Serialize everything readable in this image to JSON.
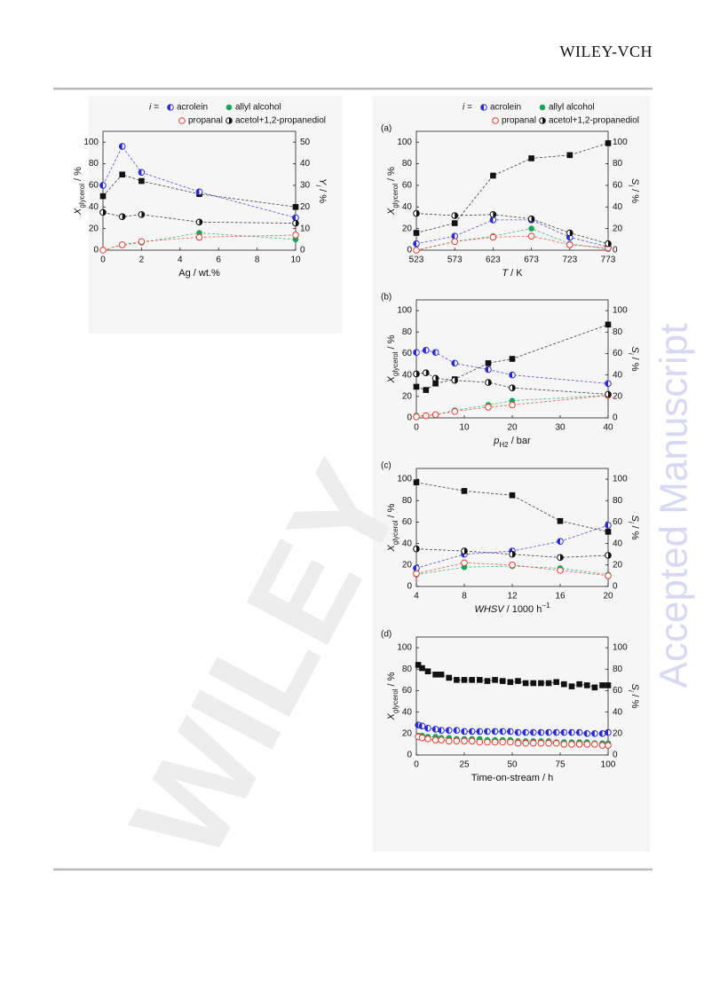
{
  "header": "WILEY-VCH",
  "watermark": "Accepted Manuscript",
  "watermark_diagonal": "WILEY",
  "chart_data": [
    {
      "type": "scatter",
      "legend": true,
      "legend_prefix": "i =",
      "xlabel": [
        "Ag / wt.%"
      ],
      "ylabel": [
        "X",
        "glycerol",
        " / %"
      ],
      "y2label": [
        "Y",
        "i",
        " / %"
      ],
      "x": [
        0,
        1,
        2,
        5,
        10
      ],
      "xlim": [
        0,
        10
      ],
      "xticks": [
        0,
        2,
        4,
        6,
        8,
        10
      ],
      "ylim": [
        0,
        110
      ],
      "yticks": [
        0,
        20,
        40,
        60,
        80,
        100
      ],
      "y2lim": [
        0,
        55
      ],
      "y2ticks": [
        0,
        10,
        20,
        30,
        40,
        50
      ],
      "series": [
        {
          "color": "#111111",
          "marker": "square",
          "axis": "y",
          "values": [
            50,
            70,
            64,
            52,
            40
          ]
        },
        {
          "name": "acrolein",
          "color": "#2b2bd6",
          "marker": "half-left",
          "axis": "y2",
          "values": [
            30,
            48,
            36,
            27,
            15
          ]
        },
        {
          "name": "allyl alcohol",
          "color": "#1aa65a",
          "marker": "filled",
          "axis": "y2",
          "values": [
            0,
            2.5,
            3.5,
            8,
            5
          ]
        },
        {
          "name": "propanal",
          "color": "#e83a2e",
          "marker": "open",
          "axis": "y2",
          "values": [
            0,
            2.5,
            4,
            6,
            7
          ]
        },
        {
          "name": "acetol+1,2-propanediol",
          "color": "#111111",
          "marker": "half-right",
          "axis": "y2",
          "values": [
            17.5,
            15.5,
            16.5,
            13,
            12.5
          ]
        }
      ]
    },
    {
      "type": "scatter",
      "legend": true,
      "legend_prefix": "i =",
      "panel": "(a)",
      "xlabel": [
        "T",
        " / K"
      ],
      "ylabel": [
        "X",
        "glycerol",
        " / %"
      ],
      "y2label": [
        "S",
        "i",
        " / %"
      ],
      "x": [
        523,
        573,
        623,
        673,
        723,
        773
      ],
      "xlim": [
        523,
        773
      ],
      "xticks": [
        523,
        573,
        623,
        673,
        723,
        773
      ],
      "ylim": [
        0,
        110
      ],
      "yticks": [
        0,
        20,
        40,
        60,
        80,
        100
      ],
      "y2lim": [
        0,
        110
      ],
      "y2ticks": [
        0,
        20,
        40,
        60,
        80,
        100
      ],
      "series": [
        {
          "color": "#111111",
          "marker": "square",
          "axis": "y",
          "values": [
            16,
            25,
            69,
            85,
            88,
            99
          ]
        },
        {
          "name": "acrolein",
          "color": "#2b2bd6",
          "marker": "half-left",
          "axis": "y2",
          "values": [
            6,
            13,
            28,
            28,
            12,
            3
          ]
        },
        {
          "name": "allyl alcohol",
          "color": "#1aa65a",
          "marker": "filled",
          "axis": "y2",
          "values": [
            0,
            8,
            13,
            20,
            6,
            1
          ]
        },
        {
          "name": "propanal",
          "color": "#e83a2e",
          "marker": "open",
          "axis": "y2",
          "values": [
            0,
            8,
            12,
            13,
            5,
            2
          ]
        },
        {
          "name": "acetol+1,2-propanediol",
          "color": "#111111",
          "marker": "half-right",
          "axis": "y2",
          "values": [
            34,
            32,
            33,
            29,
            16,
            6
          ]
        }
      ]
    },
    {
      "type": "scatter",
      "legend": false,
      "panel": "(b)",
      "xlabel": [
        "p",
        "H2",
        " / bar"
      ],
      "ylabel": [
        "X",
        "glycerol",
        " / %"
      ],
      "y2label": [
        "S",
        "i",
        " / %"
      ],
      "x": [
        0,
        2,
        4,
        8,
        15,
        20,
        40
      ],
      "xlim": [
        0,
        40
      ],
      "xticks": [
        0,
        10,
        20,
        30,
        40
      ],
      "ylim": [
        0,
        110
      ],
      "yticks": [
        0,
        20,
        40,
        60,
        80,
        100
      ],
      "y2lim": [
        0,
        110
      ],
      "y2ticks": [
        0,
        20,
        40,
        60,
        80,
        100
      ],
      "series": [
        {
          "color": "#111111",
          "marker": "square",
          "axis": "y",
          "values": [
            29,
            26,
            32,
            36,
            51,
            55,
            87
          ]
        },
        {
          "name": "acrolein",
          "color": "#2b2bd6",
          "marker": "half-left",
          "axis": "y2",
          "values": [
            61,
            63,
            61,
            51,
            45,
            40,
            32
          ]
        },
        {
          "name": "allyl alcohol",
          "color": "#1aa65a",
          "marker": "filled",
          "axis": "y2",
          "values": [
            2,
            2,
            3,
            7,
            12,
            16,
            21
          ]
        },
        {
          "name": "propanal",
          "color": "#e83a2e",
          "marker": "open",
          "axis": "y2",
          "values": [
            1,
            2,
            3,
            6,
            10,
            12,
            21
          ]
        },
        {
          "name": "acetol+1,2-propanediol",
          "color": "#111111",
          "marker": "half-right",
          "axis": "y2",
          "values": [
            41,
            42,
            37,
            35,
            33,
            28,
            22
          ]
        }
      ]
    },
    {
      "type": "scatter",
      "legend": false,
      "panel": "(c)",
      "xlabel": [
        "WHSV",
        " / 1000 h",
        "−1"
      ],
      "ylabel": [
        "X",
        "glycerol",
        " / %"
      ],
      "y2label": [
        "S",
        "i",
        " / %"
      ],
      "x": [
        4,
        8,
        12,
        16,
        20
      ],
      "xlim": [
        4,
        20
      ],
      "xticks": [
        4,
        8,
        12,
        16,
        20
      ],
      "ylim": [
        0,
        110
      ],
      "yticks": [
        0,
        20,
        40,
        60,
        80,
        100
      ],
      "y2lim": [
        0,
        110
      ],
      "y2ticks": [
        0,
        20,
        40,
        60,
        80,
        100
      ],
      "series": [
        {
          "color": "#111111",
          "marker": "square",
          "axis": "y",
          "values": [
            97,
            89,
            85,
            61,
            51
          ]
        },
        {
          "name": "acrolein",
          "color": "#2b2bd6",
          "marker": "half-left",
          "axis": "y2",
          "values": [
            17,
            30,
            33,
            42,
            57
          ]
        },
        {
          "name": "allyl alcohol",
          "color": "#1aa65a",
          "marker": "filled",
          "axis": "y2",
          "values": [
            11,
            18,
            19,
            17,
            11
          ]
        },
        {
          "name": "propanal",
          "color": "#e83a2e",
          "marker": "open",
          "axis": "y2",
          "values": [
            12,
            22,
            20,
            15,
            10
          ]
        },
        {
          "name": "acetol+1,2-propanediol",
          "color": "#111111",
          "marker": "half-right",
          "axis": "y2",
          "values": [
            35,
            33,
            30,
            27,
            29
          ]
        }
      ]
    },
    {
      "type": "scatter",
      "legend": false,
      "panel": "(d)",
      "xlabel": [
        "Time-on-stream / h"
      ],
      "ylabel": [
        "X",
        "glycerol",
        " / %"
      ],
      "y2label": [
        "S",
        "i",
        " / %"
      ],
      "x": [
        1,
        3,
        6,
        10,
        13,
        17,
        21,
        25,
        29,
        33,
        37,
        41,
        45,
        49,
        53,
        57,
        61,
        65,
        69,
        73,
        77,
        81,
        85,
        89,
        93,
        97,
        100
      ],
      "xlim": [
        0,
        100
      ],
      "xticks": [
        0,
        25,
        50,
        75,
        100
      ],
      "ylim": [
        0,
        110
      ],
      "yticks": [
        0,
        20,
        40,
        60,
        80,
        100
      ],
      "y2lim": [
        0,
        110
      ],
      "y2ticks": [
        0,
        20,
        40,
        60,
        80,
        100
      ],
      "series": [
        {
          "color": "#111111",
          "marker": "square",
          "axis": "y",
          "values": [
            84,
            81,
            78,
            75,
            75,
            72,
            70,
            70,
            70,
            70,
            69,
            70,
            69,
            68,
            69,
            67,
            67,
            67,
            67,
            68,
            66,
            64,
            66,
            65,
            63,
            65,
            65
          ]
        },
        {
          "name": "acrolein",
          "color": "#2b2bd6",
          "marker": "half-left",
          "axis": "y2",
          "values": [
            28,
            27,
            25,
            24,
            23,
            23,
            23,
            22,
            22,
            22,
            22,
            22,
            22,
            22,
            21,
            21,
            21,
            21,
            21,
            21,
            21,
            21,
            21,
            20,
            20,
            20,
            21
          ]
        },
        {
          "name": "allyl alcohol",
          "color": "#1aa65a",
          "marker": "filled",
          "axis": "y2",
          "values": [
            18,
            18,
            17,
            17,
            16,
            16,
            15,
            15,
            15,
            15,
            14,
            14,
            14,
            14,
            13,
            13,
            13,
            13,
            13,
            12,
            12,
            12,
            12,
            12,
            11,
            11,
            11
          ]
        },
        {
          "name": "propanal",
          "color": "#e83a2e",
          "marker": "open",
          "axis": "y2",
          "values": [
            17,
            16,
            15,
            14,
            14,
            13,
            13,
            13,
            13,
            12,
            12,
            12,
            12,
            12,
            11,
            11,
            11,
            11,
            11,
            11,
            10,
            10,
            10,
            10,
            10,
            9,
            9
          ]
        },
        {
          "name": "acetol+1,2-propanediol",
          "color": "#111111",
          "marker": "half-right",
          "axis": "y2",
          "values": []
        }
      ]
    }
  ]
}
